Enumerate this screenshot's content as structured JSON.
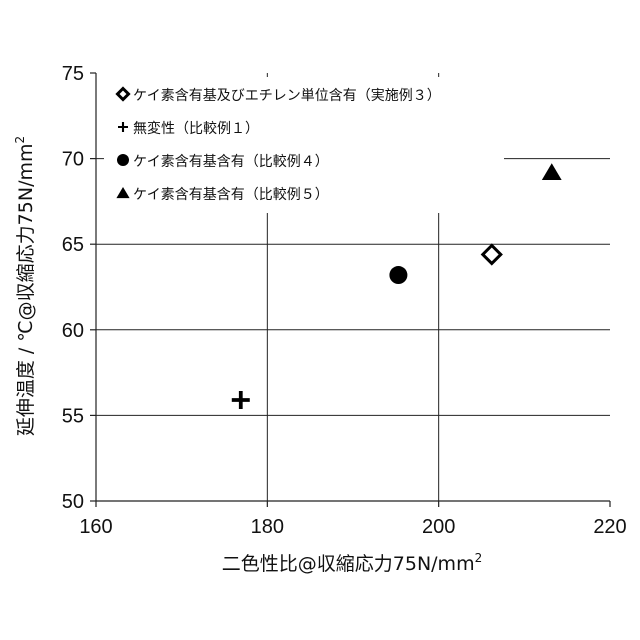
{
  "chart_data": {
    "type": "scatter",
    "xlabel": "二色性比@収縮応力75N/mm",
    "xlabel_sup": "2",
    "ylabel": "延伸温度 / ℃@収縮応力75N/mm",
    "ylabel_sup": "2",
    "xlim": [
      160,
      220
    ],
    "ylim": [
      50,
      75
    ],
    "x_ticks": [
      160,
      180,
      200,
      220
    ],
    "y_ticks": [
      50,
      55,
      60,
      65,
      70,
      75
    ],
    "grid": true,
    "legend_position": "top-left",
    "series": [
      {
        "name": "ケイ素含有基及びエチレン単位含有（実施例３）",
        "marker": "diamond-open",
        "points": [
          {
            "x": 206.2,
            "y": 64.4
          }
        ]
      },
      {
        "name": "無変性（比較例１）",
        "marker": "plus",
        "points": [
          {
            "x": 176.9,
            "y": 55.9
          }
        ]
      },
      {
        "name": "ケイ素含有基含有（比較例４）",
        "marker": "circle",
        "points": [
          {
            "x": 195.3,
            "y": 63.2
          }
        ]
      },
      {
        "name": "ケイ素含有基含有（比較例５）",
        "marker": "triangle",
        "points": [
          {
            "x": 213.2,
            "y": 69.2
          }
        ]
      }
    ]
  }
}
